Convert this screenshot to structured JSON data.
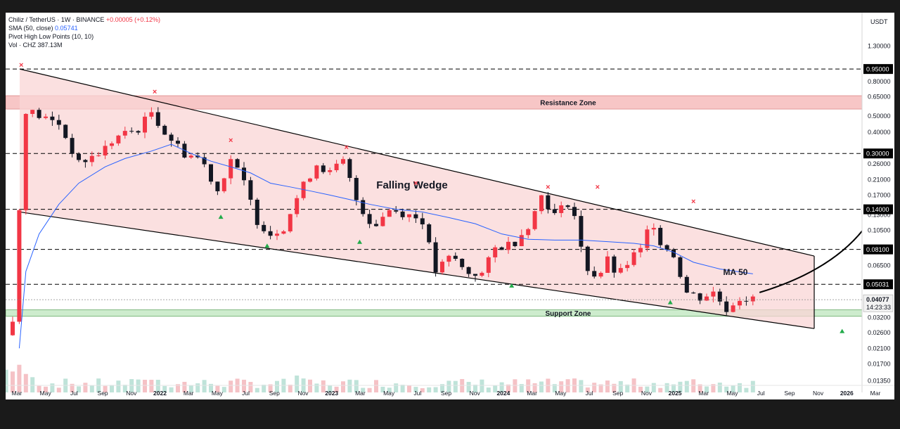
{
  "legend": {
    "symbol": "Chiliz / TetherUS · 1W · BINANCE",
    "change": "+0.00005 (+0.12%)",
    "sma_label": "SMA (50, close)",
    "sma_value": "0.05741",
    "pivot_label": "Pivot High Low Points (10, 10)",
    "vol_label": "Vol · CHZ",
    "vol_value": "387.13M"
  },
  "chart_data": {
    "type": "candlestick",
    "scale": "log",
    "yaxis_unit": "USDT",
    "ylim": [
      0.0115,
      2.05
    ],
    "y_ticks": [
      1.3,
      0.8,
      0.65,
      0.5,
      0.4,
      0.26,
      0.21,
      0.17,
      0.13,
      0.105,
      0.065,
      0.032,
      0.026,
      0.021,
      0.017,
      0.0135
    ],
    "y_tick_labels": [
      "1.30000",
      "0.80000",
      "0.65000",
      "0.50000",
      "0.40000",
      "0.26000",
      "0.21000",
      "0.17000",
      "0.13000",
      "0.10500",
      "0.06500",
      "0.03200",
      "0.02600",
      "0.02100",
      "0.01700",
      "0.01350"
    ],
    "x_labels": [
      "Mar",
      "May",
      "Jul",
      "Sep",
      "Nov",
      "2022",
      "Mar",
      "May",
      "Jul",
      "Sep",
      "Nov",
      "2023",
      "Mar",
      "May",
      "Jul",
      "Sep",
      "Nov",
      "2024",
      "Mar",
      "May",
      "Jul",
      "Sep",
      "Nov",
      "2025",
      "Mar",
      "May",
      "Jul",
      "Sep",
      "Nov",
      "2026",
      "Mar"
    ],
    "level_lines": [
      {
        "value": 0.95,
        "label": "0.95000"
      },
      {
        "value": 0.3,
        "label": "0.30000"
      },
      {
        "value": 0.14,
        "label": "0.14000"
      },
      {
        "value": 0.081,
        "label": "0.08100"
      },
      {
        "value": 0.05031,
        "label": "0.05031"
      }
    ],
    "current_price": {
      "value": 0.04077,
      "label": "0.04077",
      "countdown": "14:23:33"
    },
    "zones": [
      {
        "name": "Resistance Zone",
        "from": 0.55,
        "to": 0.66,
        "color": "#f7c6c6"
      },
      {
        "name": "Support Zone",
        "from": 0.0325,
        "to": 0.0355,
        "color": "#cdeccd"
      }
    ],
    "wedge": {
      "label": "Falling Wedge",
      "upper": [
        [
          0,
          0.95
        ],
        [
          100,
          0.074
        ]
      ],
      "lower": [
        [
          0,
          0.135
        ],
        [
          100,
          0.0275
        ]
      ]
    },
    "annotations": {
      "ma_label": "MA 50"
    },
    "close_path": [
      [
        -2,
        0.021
      ],
      [
        0,
        0.03
      ],
      [
        1,
        0.14
      ],
      [
        1.8,
        0.55
      ],
      [
        4,
        0.5
      ],
      [
        7,
        0.45
      ],
      [
        10,
        0.26
      ],
      [
        13,
        0.3
      ],
      [
        16,
        0.38
      ],
      [
        19,
        0.42
      ],
      [
        21,
        0.53
      ],
      [
        23,
        0.4
      ],
      [
        26,
        0.3
      ],
      [
        28.5,
        0.28
      ],
      [
        31,
        0.18
      ],
      [
        33,
        0.28
      ],
      [
        35,
        0.2
      ],
      [
        37,
        0.12
      ],
      [
        39,
        0.1
      ],
      [
        41,
        0.11
      ],
      [
        43.5,
        0.18
      ],
      [
        46,
        0.26
      ],
      [
        48,
        0.23
      ],
      [
        50,
        0.27
      ],
      [
        52,
        0.16
      ],
      [
        54.5,
        0.11
      ],
      [
        57,
        0.14
      ],
      [
        60,
        0.13
      ],
      [
        62,
        0.12
      ],
      [
        64,
        0.06
      ],
      [
        66.5,
        0.075
      ],
      [
        68.5,
        0.059
      ],
      [
        71,
        0.058
      ],
      [
        73,
        0.082
      ],
      [
        76,
        0.09
      ],
      [
        78.5,
        0.12
      ],
      [
        80,
        0.17
      ],
      [
        82,
        0.13
      ],
      [
        84.5,
        0.16
      ],
      [
        86.5,
        0.065
      ],
      [
        88.5,
        0.055
      ],
      [
        90,
        0.07
      ],
      [
        91.5,
        0.056
      ],
      [
        94,
        0.075
      ],
      [
        95.5,
        0.082
      ],
      [
        96.5,
        0.13
      ],
      [
        98,
        0.09
      ],
      [
        100,
        0.075
      ],
      [
        102,
        0.045
      ],
      [
        104,
        0.042
      ],
      [
        106,
        0.045
      ],
      [
        108,
        0.036
      ],
      [
        110,
        0.042
      ],
      [
        112,
        0.04077
      ]
    ],
    "sma_path": [
      [
        1,
        0.021
      ],
      [
        2,
        0.06
      ],
      [
        4,
        0.1
      ],
      [
        7,
        0.15
      ],
      [
        10,
        0.2
      ],
      [
        14,
        0.25
      ],
      [
        17,
        0.28
      ],
      [
        21,
        0.31
      ],
      [
        24,
        0.34
      ],
      [
        27,
        0.3
      ],
      [
        30,
        0.27
      ],
      [
        33,
        0.25
      ],
      [
        36,
        0.23
      ],
      [
        39,
        0.2
      ],
      [
        42,
        0.19
      ],
      [
        45,
        0.18
      ],
      [
        48,
        0.17
      ],
      [
        51,
        0.16
      ],
      [
        54,
        0.15
      ],
      [
        58,
        0.14
      ],
      [
        62,
        0.135
      ],
      [
        66,
        0.125
      ],
      [
        70,
        0.115
      ],
      [
        74,
        0.1
      ],
      [
        78,
        0.093
      ],
      [
        82,
        0.092
      ],
      [
        86,
        0.092
      ],
      [
        90,
        0.09
      ],
      [
        94,
        0.088
      ],
      [
        97,
        0.085
      ],
      [
        100,
        0.078
      ],
      [
        103,
        0.068
      ],
      [
        107,
        0.062
      ],
      [
        112,
        0.058
      ]
    ],
    "pivot_highs": [
      [
        1.3,
        0.95
      ],
      [
        21.5,
        0.66
      ],
      [
        33,
        0.34
      ],
      [
        50.5,
        0.31
      ],
      [
        61,
        0.19
      ],
      [
        81,
        0.18
      ],
      [
        88.5,
        0.18
      ],
      [
        103,
        0.148
      ]
    ],
    "pivot_lows": [
      [
        31.5,
        0.138
      ],
      [
        38.5,
        0.093
      ],
      [
        52.5,
        0.098
      ],
      [
        75.5,
        0.054
      ],
      [
        99.5,
        0.043
      ],
      [
        125.5,
        0.029
      ]
    ],
    "projection_arrow": [
      [
        113,
        0.045
      ],
      [
        128,
        0.1
      ],
      [
        133,
        0.29
      ]
    ]
  }
}
